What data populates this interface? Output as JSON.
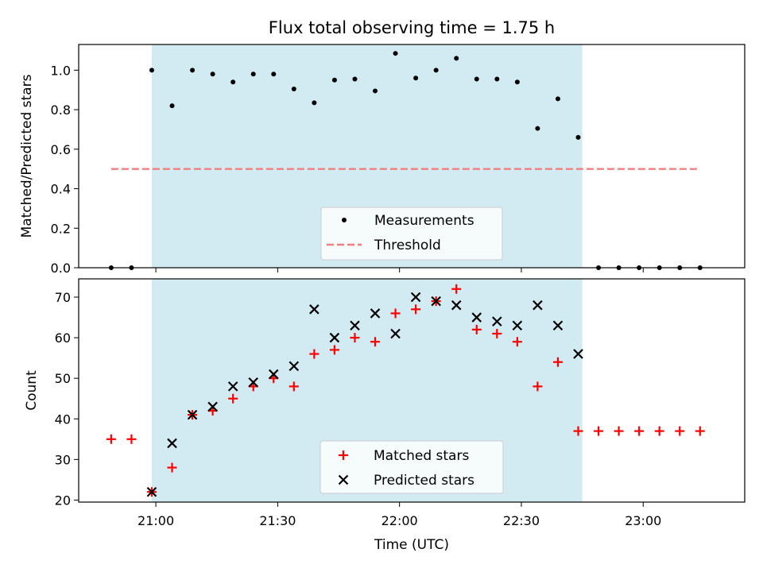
{
  "title": "Flux total observing time = 1.75 h",
  "colors": {
    "shade": "#add8e6",
    "measurement": "#000000",
    "threshold": "#f08080",
    "matched": "#ff0000",
    "predicted": "#000000"
  },
  "chart_data": [
    {
      "type": "scatter",
      "ylabel": "Matched/Predicted stars",
      "ylim": [
        0,
        1.13
      ],
      "yticks": [
        0.0,
        0.2,
        0.4,
        0.6,
        0.8,
        1.0
      ],
      "ytick_labels": [
        "0.0",
        "0.2",
        "0.4",
        "0.6",
        "0.8",
        "1.0"
      ],
      "shaded_interval": [
        "20:59",
        "22:45"
      ],
      "series": [
        {
          "name": "Measurements",
          "marker": "dot",
          "x": [
            "20:49",
            "20:54",
            "20:59",
            "21:04",
            "21:09",
            "21:14",
            "21:19",
            "21:24",
            "21:29",
            "21:34",
            "21:39",
            "21:44",
            "21:49",
            "21:54",
            "21:59",
            "22:04",
            "22:09",
            "22:14",
            "22:19",
            "22:24",
            "22:29",
            "22:34",
            "22:39",
            "22:44",
            "22:49",
            "22:54",
            "22:59",
            "23:04",
            "23:09",
            "23:14"
          ],
          "y": [
            0.0,
            0.0,
            1.0,
            0.82,
            1.0,
            0.98,
            0.94,
            0.98,
            0.98,
            0.905,
            0.835,
            0.95,
            0.955,
            0.895,
            1.085,
            0.96,
            1.0,
            1.06,
            0.955,
            0.955,
            0.94,
            0.705,
            0.855,
            0.66,
            0.0,
            0.0,
            0.0,
            0.0,
            0.0,
            0.0
          ]
        },
        {
          "name": "Threshold",
          "style": "dashed",
          "x": [
            "20:49",
            "23:14"
          ],
          "y": [
            0.5,
            0.5
          ]
        }
      ],
      "legend": "lower center"
    },
    {
      "type": "scatter",
      "xlabel": "Time (UTC)",
      "ylabel": "Count",
      "ylim": [
        19.5,
        74.5
      ],
      "yticks": [
        20,
        30,
        40,
        50,
        60,
        70
      ],
      "ytick_labels": [
        "20",
        "30",
        "40",
        "50",
        "60",
        "70"
      ],
      "xticks": [
        "21:00",
        "21:30",
        "22:00",
        "22:30",
        "23:00"
      ],
      "xlim": [
        "20:41",
        "23:25"
      ],
      "shaded_interval": [
        "20:59",
        "22:45"
      ],
      "series": [
        {
          "name": "Matched stars",
          "marker": "plus",
          "x": [
            "20:49",
            "20:54",
            "20:59",
            "21:04",
            "21:09",
            "21:14",
            "21:19",
            "21:24",
            "21:29",
            "21:34",
            "21:39",
            "21:44",
            "21:49",
            "21:54",
            "21:59",
            "22:04",
            "22:09",
            "22:14",
            "22:19",
            "22:24",
            "22:29",
            "22:34",
            "22:39",
            "22:44",
            "22:49",
            "22:54",
            "22:59",
            "23:04",
            "23:09",
            "23:14"
          ],
          "y": [
            35,
            35,
            22,
            28,
            41,
            42,
            45,
            48,
            50,
            48,
            56,
            57,
            60,
            59,
            66,
            67,
            69,
            72,
            62,
            61,
            59,
            48,
            54,
            37,
            37,
            37,
            37,
            37,
            37,
            37
          ]
        },
        {
          "name": "Predicted stars",
          "marker": "x",
          "x": [
            "20:59",
            "21:04",
            "21:09",
            "21:14",
            "21:19",
            "21:24",
            "21:29",
            "21:34",
            "21:39",
            "21:44",
            "21:49",
            "21:54",
            "21:59",
            "22:04",
            "22:09",
            "22:14",
            "22:19",
            "22:24",
            "22:29",
            "22:34",
            "22:39",
            "22:44"
          ],
          "y": [
            22,
            34,
            41,
            43,
            48,
            49,
            51,
            53,
            67,
            60,
            63,
            66,
            61,
            70,
            69,
            68,
            65,
            64,
            63,
            68,
            63,
            56
          ]
        }
      ],
      "legend": "lower center"
    }
  ]
}
